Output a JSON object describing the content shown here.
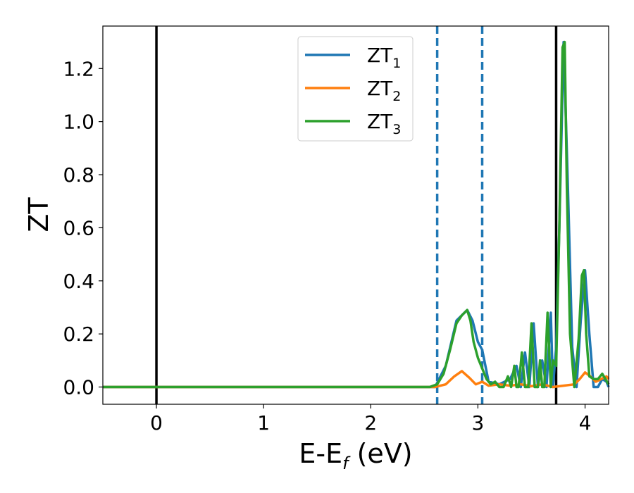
{
  "chart_data": {
    "type": "line",
    "xlabel": {
      "base": "E-E",
      "sub": "f",
      "unit": " (eV)"
    },
    "ylabel": "ZT",
    "xlim": [
      -0.5,
      4.22
    ],
    "ylim": [
      -0.065,
      1.36
    ],
    "xticks": [
      0,
      1,
      2,
      3,
      4
    ],
    "yticks": [
      0.0,
      0.2,
      0.4,
      0.6,
      0.8,
      1.0,
      1.2
    ],
    "grid": false,
    "legend_position": "top-center",
    "colors": {
      "ZT_1": "#1f77b4",
      "ZT_2": "#ff7f0e",
      "ZT_3": "#2ca02c",
      "vline_solid": "#000000",
      "vline_dashed": "#1f77b4"
    },
    "vlines": [
      {
        "x": 0.0,
        "style": "solid",
        "color": "#000000"
      },
      {
        "x": 3.73,
        "style": "solid",
        "color": "#000000"
      },
      {
        "x": 2.62,
        "style": "dashed",
        "color": "#1f77b4"
      },
      {
        "x": 3.04,
        "style": "dashed",
        "color": "#1f77b4"
      }
    ],
    "series": [
      {
        "name": "ZT",
        "sub": "1",
        "color": "#1f77b4",
        "x": [
          -0.5,
          2.6,
          2.7,
          2.8,
          2.9,
          2.95,
          3.0,
          3.04,
          3.1,
          3.2,
          3.3,
          3.36,
          3.4,
          3.44,
          3.48,
          3.52,
          3.56,
          3.6,
          3.64,
          3.68,
          3.7,
          3.73,
          3.76,
          3.8,
          3.84,
          3.88,
          3.92,
          3.96,
          4.0,
          4.04,
          4.08,
          4.12,
          4.16,
          4.2,
          4.22
        ],
        "values": [
          0.0,
          0.0,
          0.08,
          0.25,
          0.29,
          0.25,
          0.17,
          0.14,
          0.02,
          0.01,
          0.03,
          0.08,
          0.0,
          0.13,
          0.0,
          0.24,
          0.0,
          0.1,
          0.0,
          0.28,
          0.0,
          0.15,
          0.6,
          1.3,
          0.75,
          0.15,
          0.0,
          0.25,
          0.44,
          0.2,
          0.0,
          0.0,
          0.03,
          0.02,
          0.0
        ]
      },
      {
        "name": "ZT",
        "sub": "2",
        "color": "#ff7f0e",
        "x": [
          -0.5,
          2.6,
          2.7,
          2.78,
          2.85,
          2.92,
          2.98,
          3.04,
          3.1,
          3.2,
          3.3,
          3.4,
          3.5,
          3.6,
          3.7,
          3.8,
          3.9,
          3.95,
          4.0,
          4.05,
          4.1,
          4.15,
          4.2,
          4.22
        ],
        "values": [
          0.0,
          0.0,
          0.01,
          0.04,
          0.06,
          0.035,
          0.01,
          0.02,
          0.005,
          0.01,
          0.005,
          0.01,
          0.003,
          0.01,
          0.0,
          0.005,
          0.01,
          0.03,
          0.055,
          0.04,
          0.02,
          0.03,
          0.04,
          0.03
        ]
      },
      {
        "name": "ZT",
        "sub": "3",
        "color": "#2ca02c",
        "x": [
          -0.5,
          2.55,
          2.62,
          2.68,
          2.74,
          2.8,
          2.85,
          2.9,
          2.93,
          2.96,
          3.0,
          3.04,
          3.08,
          3.12,
          3.16,
          3.2,
          3.24,
          3.28,
          3.31,
          3.34,
          3.36,
          3.38,
          3.41,
          3.44,
          3.47,
          3.5,
          3.53,
          3.56,
          3.58,
          3.6,
          3.62,
          3.65,
          3.68,
          3.7,
          3.73,
          3.76,
          3.79,
          3.81,
          3.83,
          3.86,
          3.9,
          3.94,
          3.97,
          3.99,
          4.01,
          4.04,
          4.08,
          4.12,
          4.16,
          4.19,
          4.22
        ],
        "values": [
          0.0,
          0.0,
          0.01,
          0.05,
          0.14,
          0.24,
          0.27,
          0.29,
          0.25,
          0.17,
          0.11,
          0.07,
          0.03,
          0.01,
          0.02,
          0.0,
          0.0,
          0.04,
          0.0,
          0.08,
          0.0,
          0.0,
          0.13,
          0.0,
          0.0,
          0.24,
          0.0,
          0.0,
          0.1,
          0.0,
          0.0,
          0.28,
          0.0,
          0.1,
          0.08,
          0.6,
          1.28,
          1.3,
          0.75,
          0.2,
          0.0,
          0.18,
          0.42,
          0.44,
          0.2,
          0.04,
          0.03,
          0.03,
          0.05,
          0.03,
          0.01
        ]
      }
    ]
  }
}
